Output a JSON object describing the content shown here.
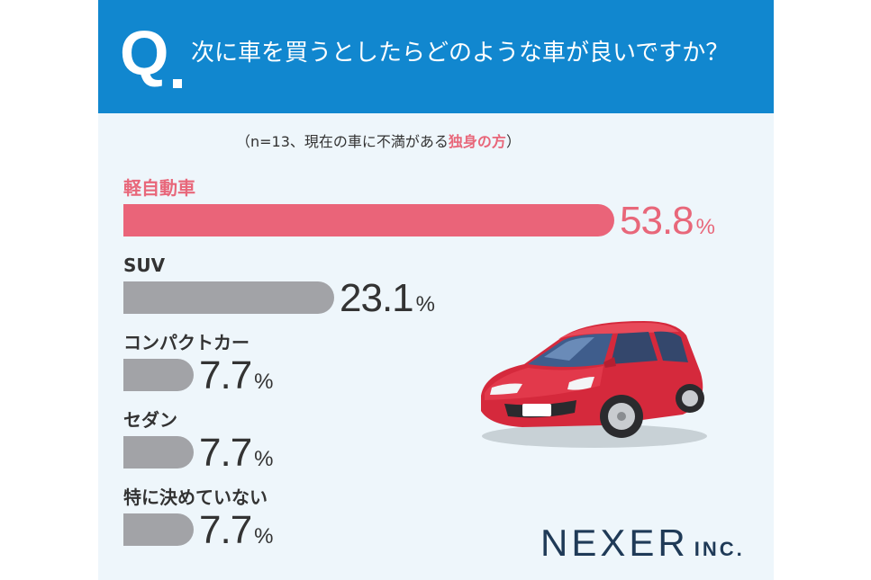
{
  "header": {
    "q_mark": "Q",
    "question": "次に車を買うとしたらどのような車が良いですか？",
    "bg_color": "#1187cf"
  },
  "note": {
    "prefix": "（n=13、現在の車に不満がある",
    "highlight": "独身の方",
    "suffix": "）"
  },
  "chart_data": {
    "type": "bar",
    "orientation": "horizontal",
    "title": "次に車を買うとしたらどのような車が良いですか？",
    "categories": [
      "軽自動車",
      "SUV",
      "コンパクトカー",
      "セダン",
      "特に決めていない"
    ],
    "values": [
      53.8,
      23.1,
      7.7,
      7.7,
      7.7
    ],
    "value_labels": [
      "53.8",
      "23.1",
      "7.7",
      "7.7",
      "7.7"
    ],
    "unit": "%",
    "highlight_index": 0,
    "colors": {
      "highlight": "#ea6479",
      "default": "#a2a3a7"
    },
    "xlim": [
      0,
      53.8
    ],
    "grid": false
  },
  "illustration": "red-hatchback-car",
  "logo": {
    "main": "NEXER",
    "inc": "INC."
  }
}
